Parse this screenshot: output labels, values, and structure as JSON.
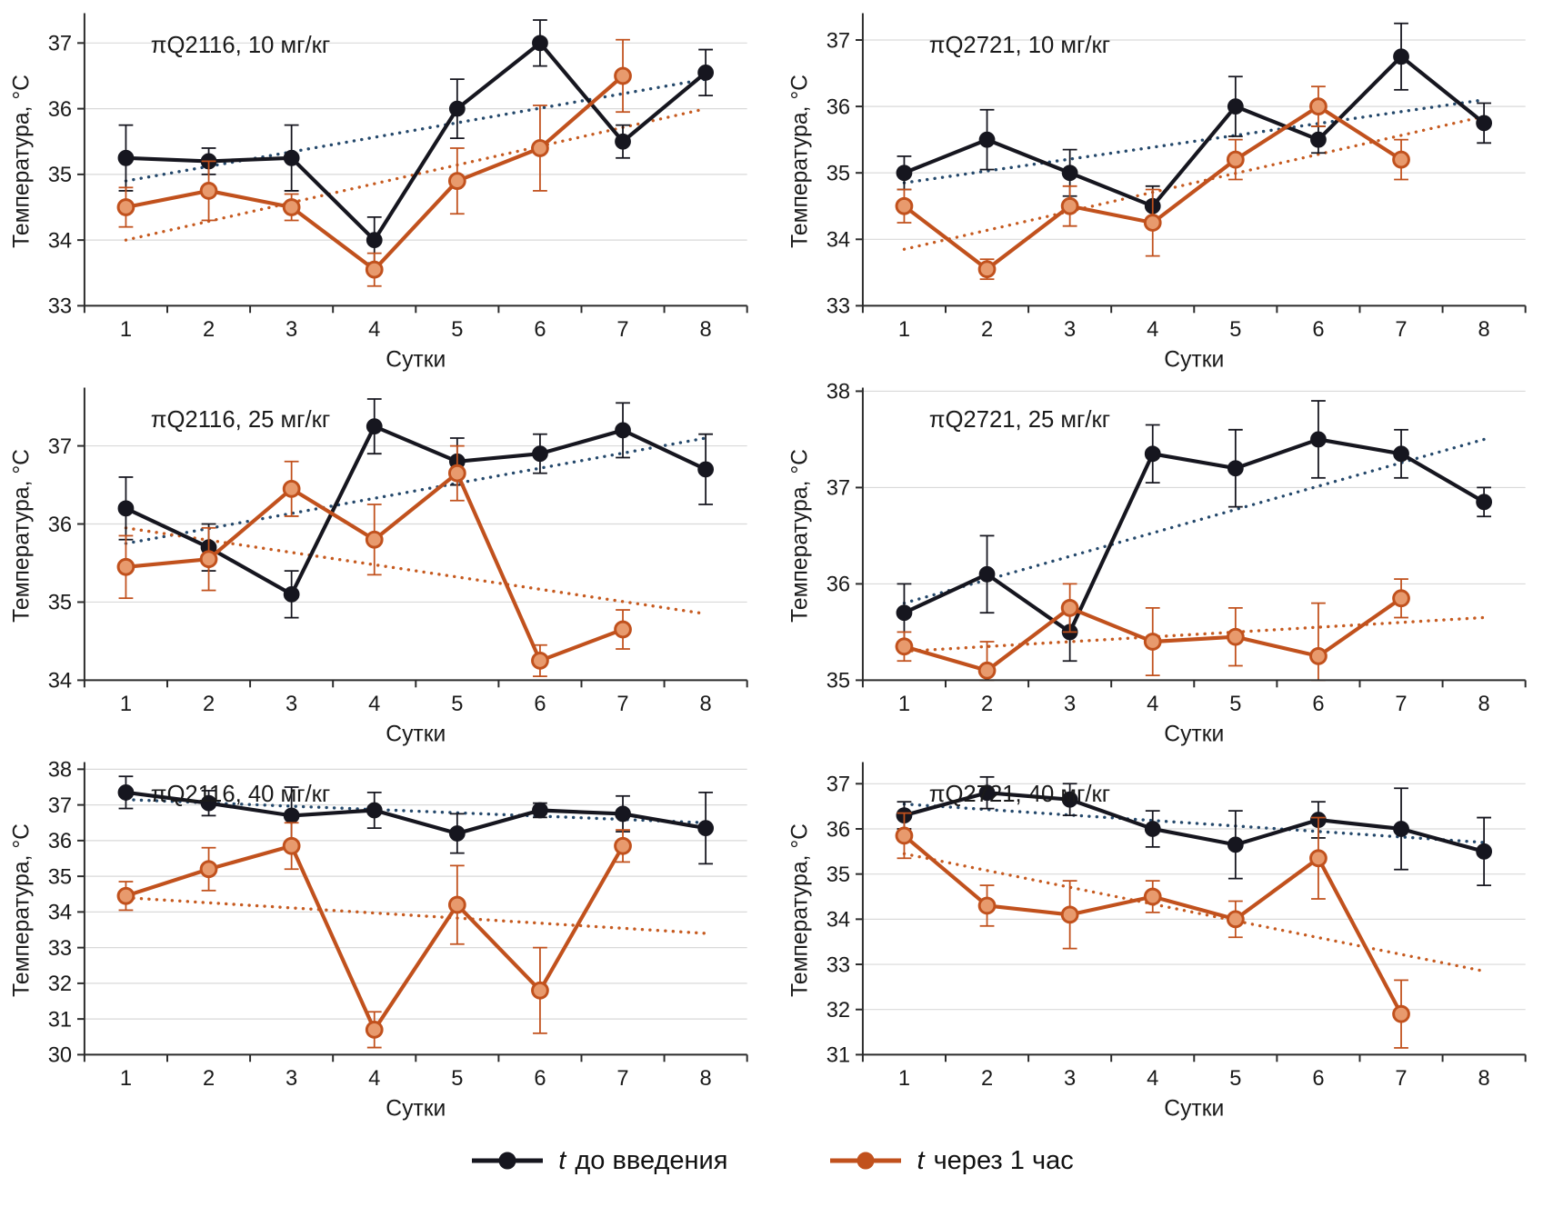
{
  "figure": {
    "xlabel": "Сутки",
    "ylabel": "Температура, °С"
  },
  "colors": {
    "series_before": "#16161f",
    "series_after": "#c1511d",
    "marker_after_fill": "#e89a6d",
    "trend_before": "#24486b",
    "trend_after": "#c65a1f",
    "grid": "#d9d9d9",
    "axis": "#2b2b2b",
    "text": "#1a1a1a"
  },
  "legend": {
    "items": [
      {
        "prefix": "t",
        "label": " до введения",
        "color": "#16161f",
        "marker_fill": "#16161f"
      },
      {
        "prefix": "t",
        "label": " через 1 час",
        "color": "#c1511d",
        "marker_fill": "#c1511d"
      }
    ]
  },
  "chart_data": [
    {
      "id": "pq2116-10",
      "type": "line",
      "title": "πQ2116, 10 мг/кг",
      "xlabel": "Сутки",
      "ylabel": "Температура, °С",
      "x": [
        1,
        2,
        3,
        4,
        5,
        6,
        7,
        8
      ],
      "ylim": [
        33,
        37.4
      ],
      "yticks": [
        33,
        34,
        35,
        36,
        37
      ],
      "series": [
        {
          "name": "t до введения",
          "values": [
            35.25,
            35.2,
            35.25,
            34.0,
            36.0,
            37.0,
            35.5,
            36.55
          ],
          "errors": [
            0.5,
            0.2,
            0.5,
            0.35,
            0.45,
            0.35,
            0.25,
            0.35
          ]
        },
        {
          "name": "t через 1 час",
          "values": [
            34.5,
            34.75,
            34.5,
            33.55,
            34.9,
            35.4,
            36.5,
            null
          ],
          "errors": [
            0.3,
            0.45,
            0.2,
            0.25,
            0.5,
            0.65,
            0.55,
            null
          ]
        }
      ],
      "trends": [
        {
          "series": 0,
          "start": 34.9,
          "end": 36.45
        },
        {
          "series": 1,
          "start": 34.0,
          "end": 36.0
        }
      ]
    },
    {
      "id": "pq2721-10",
      "type": "line",
      "title": "πQ2721, 10 мг/кг",
      "xlabel": "Сутки",
      "ylabel": "Температура, °С",
      "x": [
        1,
        2,
        3,
        4,
        5,
        6,
        7,
        8
      ],
      "ylim": [
        33,
        37.35
      ],
      "yticks": [
        33,
        34,
        35,
        36,
        37
      ],
      "series": [
        {
          "name": "t до введения",
          "values": [
            35.0,
            35.5,
            35.0,
            34.5,
            36.0,
            35.5,
            36.75,
            35.75
          ],
          "errors": [
            0.25,
            0.45,
            0.35,
            0.3,
            0.45,
            0.2,
            0.5,
            0.3
          ]
        },
        {
          "name": "t через 1 час",
          "values": [
            34.5,
            33.55,
            34.5,
            34.25,
            35.2,
            36.0,
            35.2,
            null
          ],
          "errors": [
            0.25,
            0.15,
            0.3,
            0.5,
            0.3,
            0.3,
            0.3,
            null
          ]
        }
      ],
      "trends": [
        {
          "series": 0,
          "start": 34.85,
          "end": 36.1
        },
        {
          "series": 1,
          "start": 33.85,
          "end": 35.85
        }
      ]
    },
    {
      "id": "pq2116-25",
      "type": "line",
      "title": "πQ2116, 25 мг/кг",
      "xlabel": "Сутки",
      "ylabel": "Температура, °С",
      "x": [
        1,
        2,
        3,
        4,
        5,
        6,
        7,
        8
      ],
      "ylim": [
        34,
        37.7
      ],
      "yticks": [
        34,
        35,
        36,
        37
      ],
      "series": [
        {
          "name": "t до введения",
          "values": [
            36.2,
            35.7,
            35.1,
            37.25,
            36.8,
            36.9,
            37.2,
            36.7
          ],
          "errors": [
            0.4,
            0.3,
            0.3,
            0.35,
            0.3,
            0.25,
            0.35,
            0.45
          ]
        },
        {
          "name": "t через 1 час",
          "values": [
            35.45,
            35.55,
            36.45,
            35.8,
            36.65,
            34.25,
            34.65,
            null
          ],
          "errors": [
            0.4,
            0.4,
            0.35,
            0.45,
            0.35,
            0.2,
            0.25,
            null
          ]
        }
      ],
      "trends": [
        {
          "series": 0,
          "start": 35.75,
          "end": 37.1
        },
        {
          "series": 1,
          "start": 35.95,
          "end": 34.85
        }
      ]
    },
    {
      "id": "pq2721-25",
      "type": "line",
      "title": "πQ2721, 25 мг/кг",
      "xlabel": "Сутки",
      "ylabel": "Температура, °С",
      "x": [
        1,
        2,
        3,
        4,
        5,
        6,
        7,
        8
      ],
      "ylim": [
        35,
        38
      ],
      "yticks": [
        35,
        36,
        37,
        38
      ],
      "series": [
        {
          "name": "t до введения",
          "values": [
            35.7,
            36.1,
            35.5,
            37.35,
            37.2,
            37.5,
            37.35,
            36.85
          ],
          "errors": [
            0.3,
            0.4,
            0.3,
            0.3,
            0.4,
            0.4,
            0.25,
            0.15
          ]
        },
        {
          "name": "t через 1 час",
          "values": [
            35.35,
            35.1,
            35.75,
            35.4,
            35.45,
            35.25,
            35.85,
            null
          ],
          "errors": [
            0.15,
            0.3,
            0.25,
            0.35,
            0.3,
            0.55,
            0.2,
            null
          ]
        }
      ],
      "trends": [
        {
          "series": 0,
          "start": 35.8,
          "end": 37.5
        },
        {
          "series": 1,
          "start": 35.3,
          "end": 35.65
        }
      ]
    },
    {
      "id": "pq2116-40",
      "type": "line",
      "title": "πQ2116, 40 мг/кг",
      "xlabel": "Сутки",
      "ylabel": "Температура, °С",
      "x": [
        1,
        2,
        3,
        4,
        5,
        6,
        7,
        8
      ],
      "ylim": [
        30,
        38.1
      ],
      "yticks": [
        30,
        31,
        32,
        33,
        34,
        35,
        36,
        37,
        38
      ],
      "series": [
        {
          "name": "t до введения",
          "values": [
            37.35,
            37.05,
            36.7,
            36.85,
            36.2,
            36.85,
            36.75,
            36.35
          ],
          "errors": [
            0.45,
            0.35,
            0.8,
            0.5,
            0.55,
            0.2,
            0.5,
            1.0
          ]
        },
        {
          "name": "t через 1 час",
          "values": [
            34.45,
            35.2,
            35.85,
            30.7,
            34.2,
            31.8,
            35.85,
            null
          ],
          "errors": [
            0.4,
            0.6,
            0.65,
            0.5,
            1.1,
            1.2,
            0.45,
            null
          ]
        }
      ],
      "trends": [
        {
          "series": 0,
          "start": 37.15,
          "end": 36.5
        },
        {
          "series": 1,
          "start": 34.4,
          "end": 33.4
        }
      ]
    },
    {
      "id": "pq2721-40",
      "type": "line",
      "title": "πQ2721, 40 мг/кг",
      "xlabel": "Сутки",
      "ylabel": "Температура, °С",
      "x": [
        1,
        2,
        3,
        4,
        5,
        6,
        7,
        8
      ],
      "ylim": [
        31,
        37.4
      ],
      "yticks": [
        31,
        32,
        33,
        34,
        35,
        36,
        37
      ],
      "series": [
        {
          "name": "t до введения",
          "values": [
            36.3,
            36.8,
            36.65,
            36.0,
            35.65,
            36.2,
            36.0,
            35.5
          ],
          "errors": [
            0.3,
            0.35,
            0.35,
            0.4,
            0.75,
            0.4,
            0.9,
            0.75
          ]
        },
        {
          "name": "t через 1 час",
          "values": [
            35.85,
            34.3,
            34.1,
            34.5,
            34.0,
            35.35,
            31.9,
            null
          ],
          "errors": [
            0.5,
            0.45,
            0.75,
            0.35,
            0.4,
            0.9,
            0.75,
            null
          ]
        }
      ],
      "trends": [
        {
          "series": 0,
          "start": 36.55,
          "end": 35.7
        },
        {
          "series": 1,
          "start": 35.45,
          "end": 32.85
        }
      ]
    }
  ]
}
